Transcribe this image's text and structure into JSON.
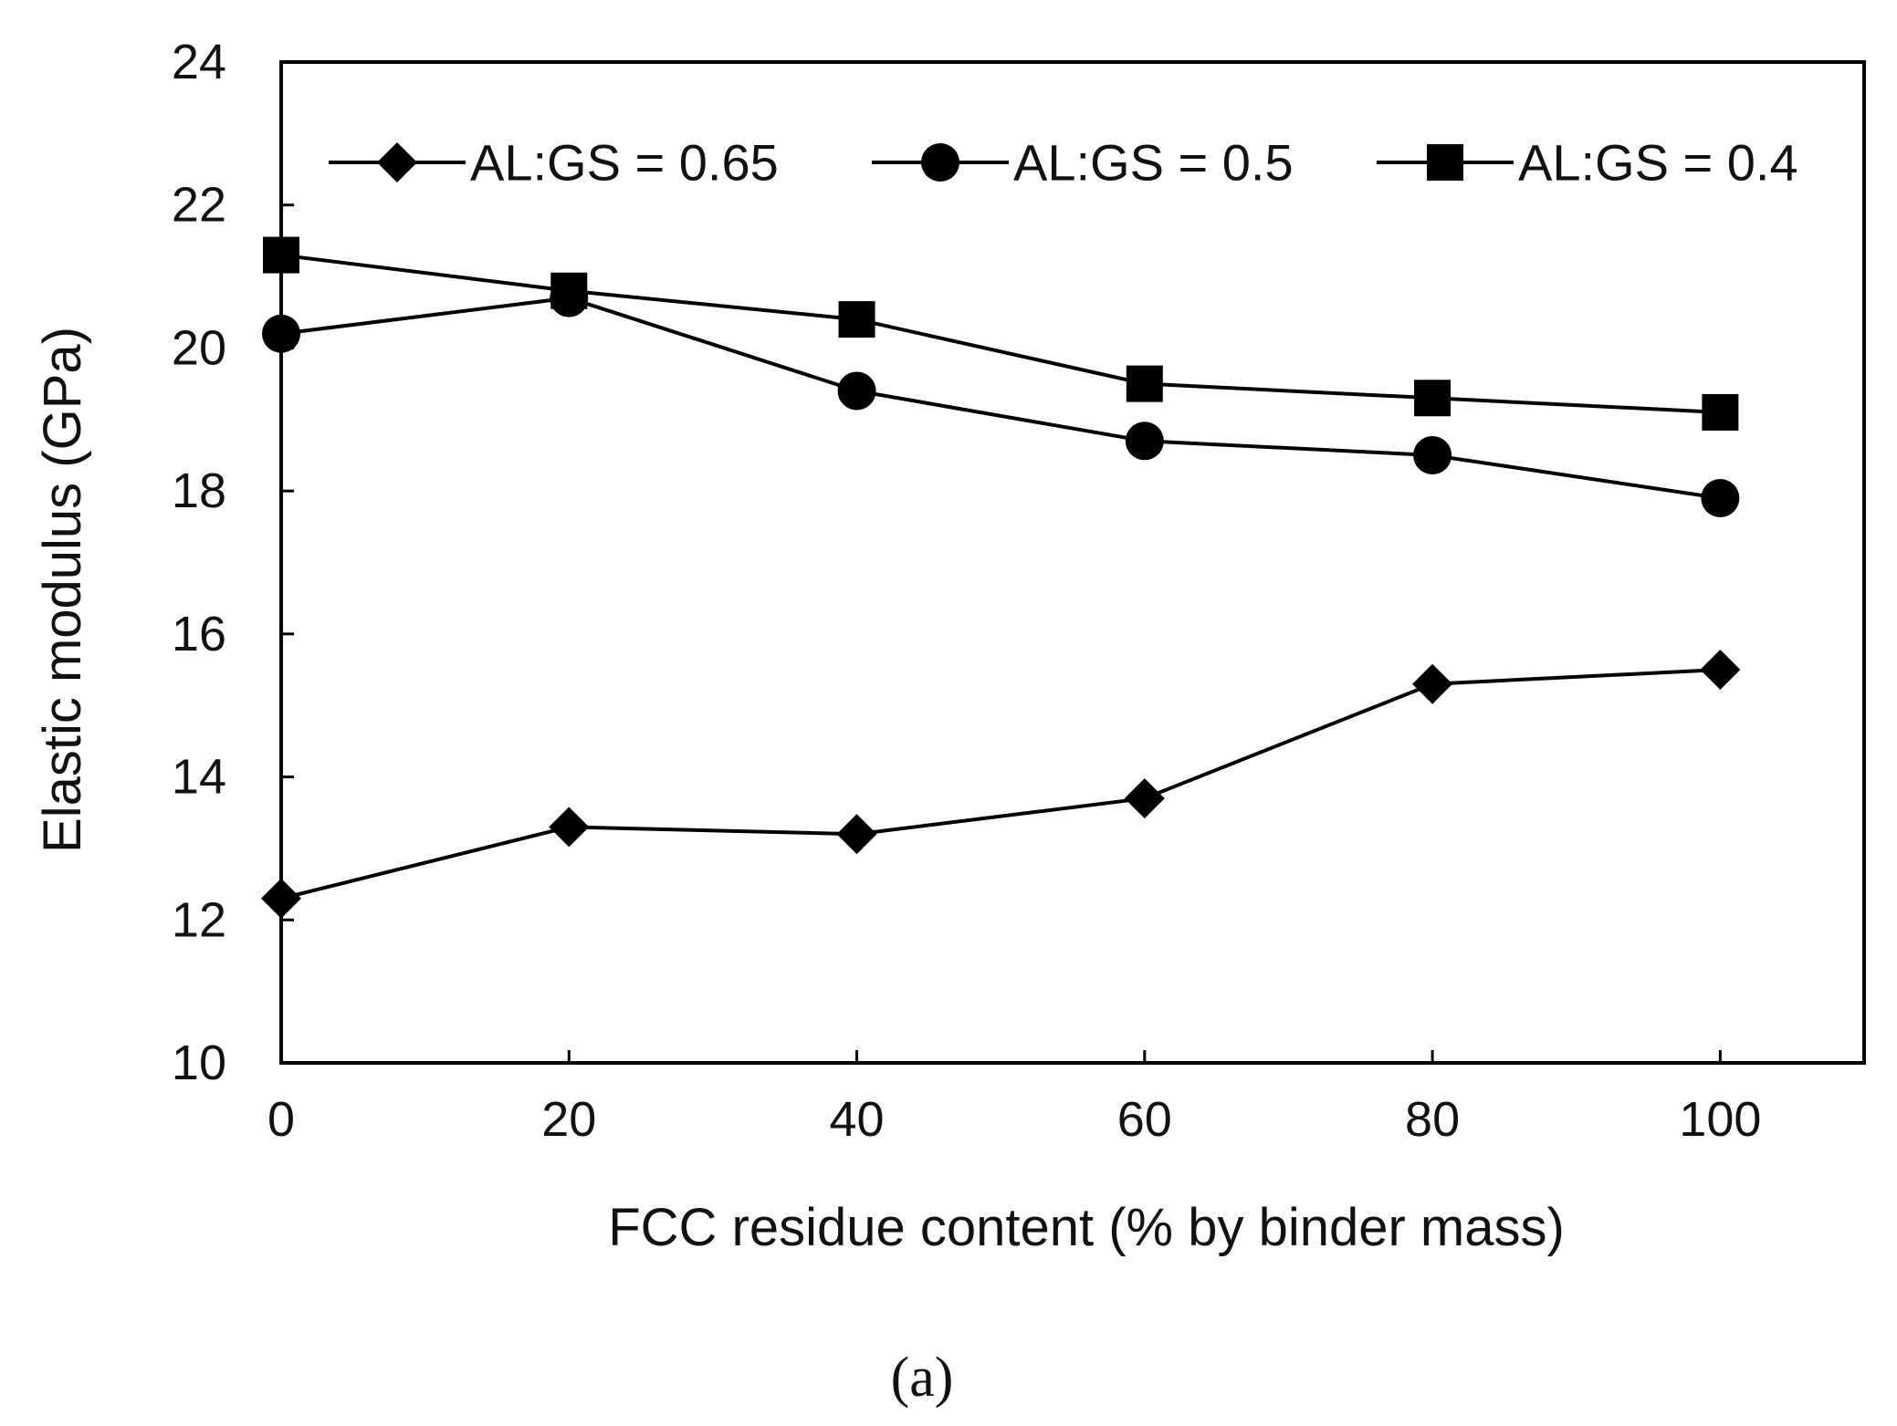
{
  "chart_data": {
    "type": "line",
    "title": "",
    "xlabel": "FCC residue content (% by binder mass)",
    "ylabel": "Elastic modulus (GPa)",
    "caption": "(a)",
    "x": [
      0,
      20,
      40,
      60,
      80,
      100
    ],
    "xticks": [
      "0",
      "20",
      "40",
      "60",
      "80",
      "100"
    ],
    "yticks": [
      "10",
      "12",
      "14",
      "16",
      "18",
      "20",
      "22",
      "24"
    ],
    "xlim": [
      0,
      110
    ],
    "ylim": [
      10,
      24
    ],
    "grid": false,
    "legend_position": "top",
    "series": [
      {
        "name": "AL:GS = 0.65",
        "marker": "diamond",
        "values": [
          12.3,
          13.3,
          13.2,
          13.7,
          15.3,
          15.5
        ]
      },
      {
        "name": "AL:GS = 0.5",
        "marker": "circle",
        "values": [
          20.2,
          20.7,
          19.4,
          18.7,
          18.5,
          17.9
        ]
      },
      {
        "name": "AL:GS = 0.4",
        "marker": "square",
        "values": [
          21.3,
          20.8,
          20.4,
          19.5,
          19.3,
          19.1
        ]
      }
    ],
    "colors": {
      "line": "#000000",
      "marker": "#000000"
    }
  }
}
